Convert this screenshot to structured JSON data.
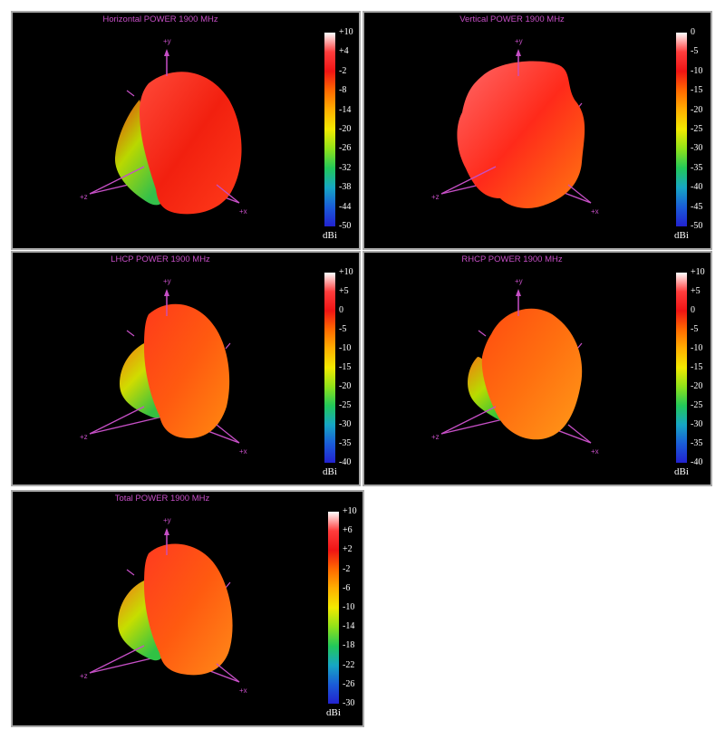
{
  "axis_labels": {
    "y": "+y",
    "x": "+x",
    "z": "+z"
  },
  "panels": [
    {
      "id": "horizontal",
      "title": "Horizontal POWER 1900  MHz",
      "unit": "dBi",
      "colorbar_ticks": [
        "+10",
        "+4",
        "-2",
        "-8",
        "-14",
        "-20",
        "-26",
        "-32",
        "-38",
        "-44",
        "-50"
      ],
      "colorbar_colors": [
        "#ffffff",
        "#ff3d3d",
        "#f01414",
        "#ff6a00",
        "#ffb000",
        "#f2ea00",
        "#8fe21a",
        "#22c85a",
        "#16a6c4",
        "#1a5cd8",
        "#2222d0"
      ]
    },
    {
      "id": "vertical",
      "title": "Vertical POWER 1900  MHz",
      "unit": "dBi",
      "colorbar_ticks": [
        "0",
        "-5",
        "-10",
        "-15",
        "-20",
        "-25",
        "-30",
        "-35",
        "-40",
        "-45",
        "-50"
      ],
      "colorbar_colors": [
        "#ffffff",
        "#ff3d3d",
        "#f01414",
        "#ff6a00",
        "#ffb000",
        "#f2ea00",
        "#8fe21a",
        "#22c85a",
        "#16a6c4",
        "#1a5cd8",
        "#2222d0"
      ]
    },
    {
      "id": "lhcp",
      "title": "LHCP POWER 1900  MHz",
      "unit": "dBi",
      "colorbar_ticks": [
        "+10",
        "+5",
        "0",
        "-5",
        "-10",
        "-15",
        "-20",
        "-25",
        "-30",
        "-35",
        "-40"
      ],
      "colorbar_colors": [
        "#ffffff",
        "#ff3d3d",
        "#f01414",
        "#ff6a00",
        "#ffb000",
        "#f2ea00",
        "#8fe21a",
        "#22c85a",
        "#16a6c4",
        "#1a5cd8",
        "#2222d0"
      ]
    },
    {
      "id": "rhcp",
      "title": "RHCP POWER 1900  MHz",
      "unit": "dBi",
      "colorbar_ticks": [
        "+10",
        "+5",
        "0",
        "-5",
        "-10",
        "-15",
        "-20",
        "-25",
        "-30",
        "-35",
        "-40"
      ],
      "colorbar_colors": [
        "#ffffff",
        "#ff3d3d",
        "#f01414",
        "#ff6a00",
        "#ffb000",
        "#f2ea00",
        "#8fe21a",
        "#22c85a",
        "#16a6c4",
        "#1a5cd8",
        "#2222d0"
      ]
    },
    {
      "id": "total",
      "title": "Total POWER 1900  MHz",
      "unit": "dBi",
      "colorbar_ticks": [
        "+10",
        "+6",
        "+2",
        "-2",
        "-6",
        "-10",
        "-14",
        "-18",
        "-22",
        "-26",
        "-30"
      ],
      "colorbar_colors": [
        "#ffffff",
        "#ff3d3d",
        "#f01414",
        "#ff6a00",
        "#ffb000",
        "#f2ea00",
        "#8fe21a",
        "#22c85a",
        "#16a6c4",
        "#1a5cd8",
        "#2222d0"
      ]
    }
  ],
  "colors": {
    "background": "#000000",
    "frame": "#a8a8a8",
    "title": "#c64fc6",
    "axis": "#c64fc6",
    "tick_text": "#ffffff"
  }
}
